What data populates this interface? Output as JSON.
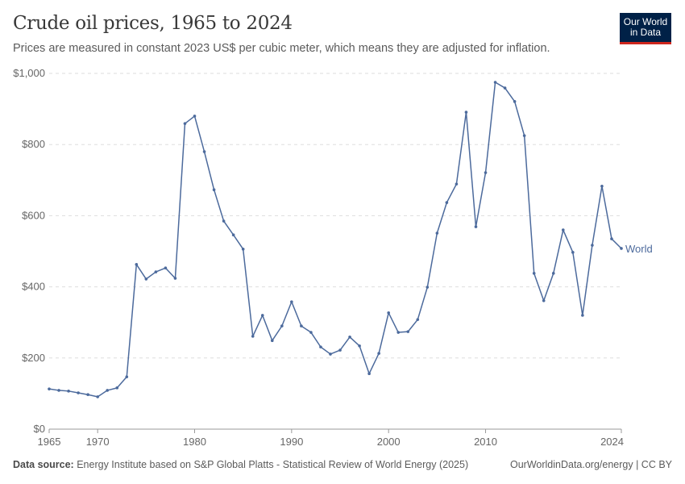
{
  "header": {
    "title": "Crude oil prices, 1965 to 2024",
    "subtitle": "Prices are measured in constant 2023 US$ per cubic meter, which means they are adjusted for inflation.",
    "logo": "Our World in Data"
  },
  "footer": {
    "source_label": "Data source:",
    "source": "Energy Institute based on S&P Global Platts - Statistical Review of World Energy (2025)",
    "credit": "OurWorldinData.org/energy | CC BY"
  },
  "chart_data": {
    "type": "line",
    "title": "Crude oil prices, 1965 to 2024",
    "xlabel": "",
    "ylabel": "",
    "xlim": [
      1965,
      2024
    ],
    "ylim": [
      0,
      1000
    ],
    "x_ticks": [
      "1965",
      "1970",
      "1980",
      "1990",
      "2000",
      "2010",
      "2024"
    ],
    "y_ticks": [
      "$0",
      "$200",
      "$400",
      "$600",
      "$800",
      "$1,000"
    ],
    "grid": "horizontal dashed",
    "legend": "inline-right",
    "color": "#4c6a9c",
    "series": [
      {
        "name": "World",
        "x": [
          1965,
          1966,
          1967,
          1968,
          1969,
          1970,
          1971,
          1972,
          1973,
          1974,
          1975,
          1976,
          1977,
          1978,
          1979,
          1980,
          1981,
          1982,
          1983,
          1984,
          1985,
          1986,
          1987,
          1988,
          1989,
          1990,
          1991,
          1992,
          1993,
          1994,
          1995,
          1996,
          1997,
          1998,
          1999,
          2000,
          2001,
          2002,
          2003,
          2004,
          2005,
          2006,
          2007,
          2008,
          2009,
          2010,
          2011,
          2012,
          2013,
          2014,
          2015,
          2016,
          2017,
          2018,
          2019,
          2020,
          2021,
          2022,
          2023,
          2024
        ],
        "values": [
          113,
          109,
          107,
          102,
          97,
          91,
          109,
          116,
          147,
          463,
          422,
          442,
          453,
          424,
          859,
          880,
          780,
          673,
          585,
          546,
          506,
          261,
          320,
          249,
          290,
          358,
          290,
          272,
          231,
          211,
          222,
          259,
          234,
          156,
          213,
          327,
          272,
          274,
          308,
          399,
          551,
          637,
          689,
          891,
          569,
          721,
          975,
          959,
          921,
          825,
          438,
          361,
          438,
          560,
          497,
          320,
          517,
          683,
          535,
          508
        ]
      }
    ]
  }
}
